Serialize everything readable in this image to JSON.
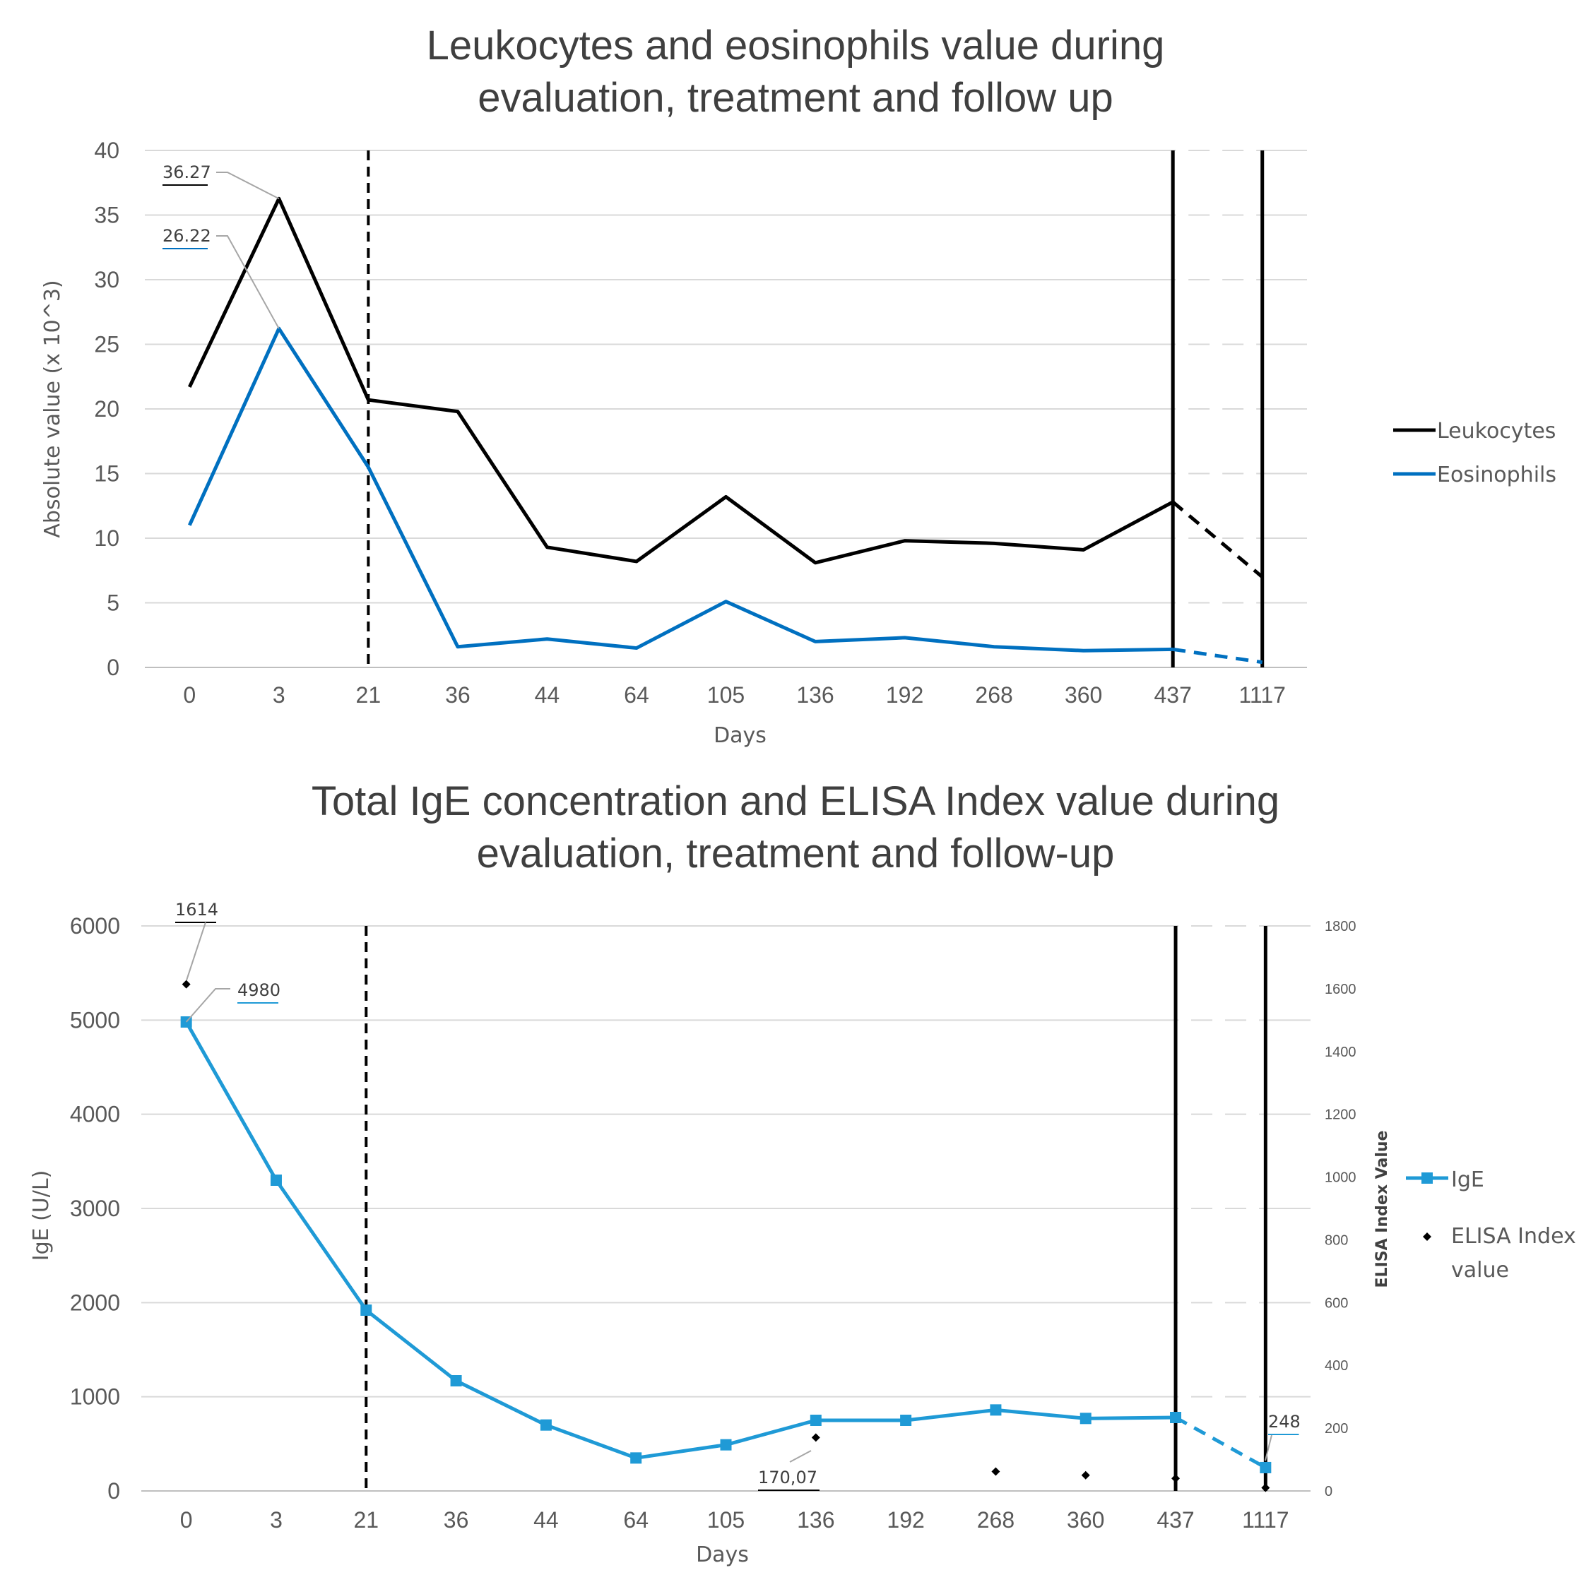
{
  "chart_data": [
    {
      "type": "line",
      "title_line1": "Leukocytes and eosinophils value during",
      "title_line2": "evaluation, treatment and follow up",
      "xlabel": "Days",
      "ylabel": "Absolute value (x 10^3)",
      "categories": [
        "0",
        "3",
        "21",
        "36",
        "44",
        "64",
        "105",
        "136",
        "192",
        "268",
        "360",
        "437",
        "1117"
      ],
      "ylim": [
        0,
        40
      ],
      "yticks": [
        "0",
        "5",
        "10",
        "15",
        "20",
        "25",
        "30",
        "35",
        "40"
      ],
      "grid": true,
      "legend_position": "right",
      "reference_lines": [
        {
          "at_category": "21",
          "style": "dashed"
        },
        {
          "at_category": "437",
          "style": "solid"
        },
        {
          "at_category": "1117",
          "style": "solid"
        }
      ],
      "series": [
        {
          "name": "Leukocytes",
          "color": "#000000",
          "values": [
            21.7,
            36.27,
            20.7,
            19.8,
            9.3,
            8.2,
            13.2,
            8.1,
            9.8,
            9.6,
            9.1,
            12.8,
            7.0
          ],
          "dashed_from_category": "437"
        },
        {
          "name": "Eosinophils",
          "color": "#0070c0",
          "values": [
            11.0,
            26.22,
            15.5,
            1.6,
            2.2,
            1.5,
            5.1,
            2.0,
            2.3,
            1.6,
            1.3,
            1.4,
            0.4
          ],
          "dashed_from_category": "437"
        }
      ],
      "annotations": [
        {
          "text": "36.27",
          "series": "Leukocytes",
          "category": "3",
          "underline": "#000000"
        },
        {
          "text": "26.22",
          "series": "Eosinophils",
          "category": "3",
          "underline": "#0070c0"
        }
      ]
    },
    {
      "type": "line",
      "title_line1": "Total IgE concentration and ELISA Index value during",
      "title_line2": "evaluation, treatment and follow-up",
      "xlabel": "Days",
      "ylabel": "IgE (U/L)",
      "y2label": "ELISA Index Value",
      "categories": [
        "0",
        "3",
        "21",
        "36",
        "44",
        "64",
        "105",
        "136",
        "192",
        "268",
        "360",
        "437",
        "1117"
      ],
      "ylim": [
        0,
        6000
      ],
      "yticks": [
        "0",
        "1000",
        "2000",
        "3000",
        "4000",
        "5000",
        "6000"
      ],
      "y2lim": [
        0,
        1800
      ],
      "y2ticks": [
        "0",
        "200",
        "400",
        "600",
        "800",
        "1000",
        "1200",
        "1400",
        "1600",
        "1800"
      ],
      "grid": true,
      "legend_position": "right",
      "reference_lines": [
        {
          "at_category": "21",
          "style": "dashed"
        },
        {
          "at_category": "437",
          "style": "solid"
        },
        {
          "at_category": "1117",
          "style": "solid"
        }
      ],
      "series": [
        {
          "name": "IgE",
          "color": "#1f9ad6",
          "axis": "left",
          "marker": "square",
          "values": [
            4980,
            3300,
            1920,
            1170,
            700,
            350,
            490,
            750,
            750,
            860,
            770,
            780,
            248
          ],
          "dashed_from_category": "437"
        },
        {
          "name": "ELISA Index value",
          "color": "#000000",
          "axis": "right",
          "marker": "diamond",
          "line": false,
          "points": [
            {
              "category": "0",
              "value": 1614
            },
            {
              "category": "136",
              "value": 170.07
            },
            {
              "category": "268",
              "value": 62
            },
            {
              "category": "360",
              "value": 50
            },
            {
              "category": "437",
              "value": 40
            },
            {
              "category": "1117",
              "value": 10
            }
          ]
        }
      ],
      "annotations": [
        {
          "text": "1614",
          "series": "ELISA Index value",
          "category": "0",
          "underline": "#000000"
        },
        {
          "text": "4980",
          "series": "IgE",
          "category": "0",
          "underline": "#1f9ad6"
        },
        {
          "text": "170,07",
          "series": "ELISA Index value",
          "category": "136",
          "underline": "#000000"
        },
        {
          "text": "248",
          "series": "IgE",
          "category": "1117",
          "underline": "#1f9ad6"
        }
      ]
    }
  ]
}
